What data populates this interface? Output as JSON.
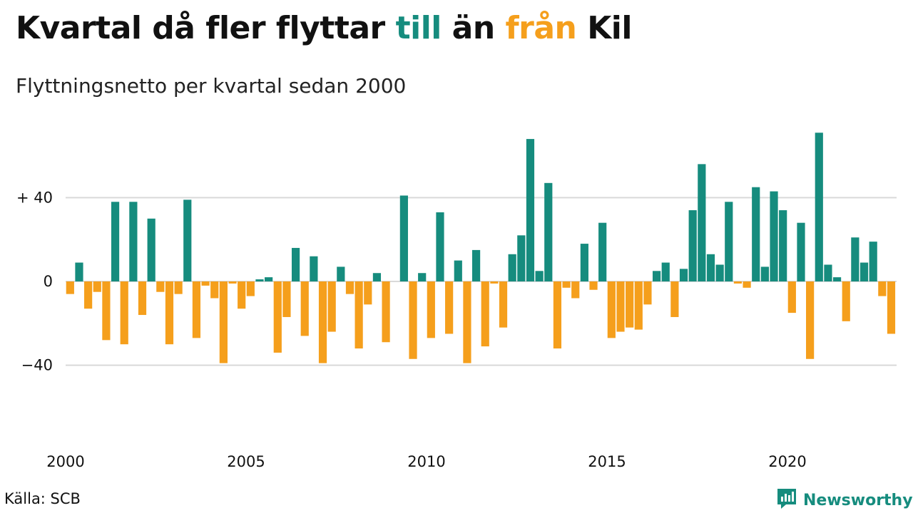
{
  "title": {
    "part1": "Kvartal då fler flyttar ",
    "till": "till",
    "mid": " än ",
    "fran": "från",
    "end": " Kil"
  },
  "subtitle": "Flyttningsnetto per kvartal sedan 2000",
  "source": "Källa: SCB",
  "brand": {
    "name": "Newsworthy",
    "logo_icon": "bar-chart-speech-bubble-icon"
  },
  "colors": {
    "positive": "#168c7e",
    "negative": "#f59f1c",
    "grid": "#d9d9d9",
    "brand": "#168c7e"
  },
  "chart_data": {
    "type": "bar",
    "title": "Kvartal då fler flyttar till än från Kil",
    "subtitle": "Flyttningsnetto per kvartal sedan 2000",
    "xlabel": "",
    "ylabel": "",
    "x_unit": "quarter",
    "x_start": "2000 Q1",
    "x_ticks": [
      "2000",
      "2005",
      "2010",
      "2015",
      "2020"
    ],
    "y_ticks": [
      {
        "value": 40,
        "label": "+ 40"
      },
      {
        "value": 0,
        "label": "0"
      },
      {
        "value": -40,
        "label": "−40"
      }
    ],
    "ylim": [
      -60,
      75
    ],
    "grid": true,
    "values": [
      -6,
      9,
      -13,
      -5,
      -28,
      38,
      -30,
      38,
      -16,
      30,
      -5,
      -30,
      -6,
      39,
      -27,
      -2,
      -8,
      -39,
      -1,
      -13,
      -7,
      1,
      2,
      -34,
      -17,
      16,
      -26,
      12,
      -39,
      -24,
      7,
      -6,
      -32,
      -11,
      4,
      -29,
      0,
      41,
      -37,
      4,
      -27,
      33,
      -25,
      10,
      -39,
      15,
      -31,
      -1,
      -22,
      13,
      22,
      68,
      5,
      47,
      -32,
      -3,
      -8,
      18,
      -4,
      28,
      -27,
      -24,
      -22,
      -23,
      -11,
      5,
      9,
      -17,
      6,
      34,
      56,
      13,
      8,
      38,
      -1,
      -3,
      45,
      7,
      43,
      34,
      -15,
      28,
      -37,
      71,
      8,
      2,
      -19,
      21,
      9,
      19,
      -7,
      -25
    ]
  }
}
